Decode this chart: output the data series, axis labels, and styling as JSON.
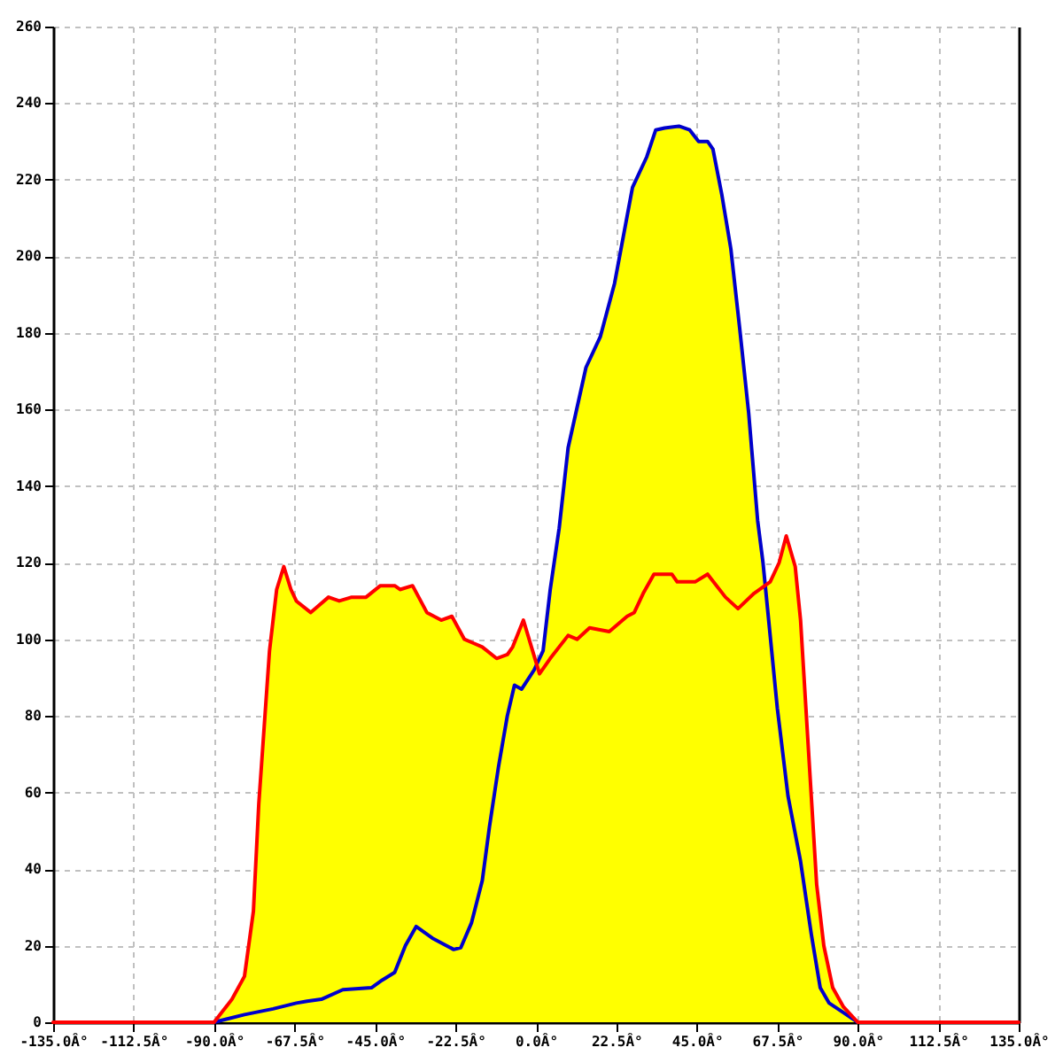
{
  "chart_data": {
    "type": "area",
    "grid": true,
    "xlim": [
      -135,
      135
    ],
    "xticks": [
      {
        "value": -135,
        "label": "-135.0Â°"
      },
      {
        "value": -112.5,
        "label": "-112.5Â°"
      },
      {
        "value": -90,
        "label": "-90.0Â°"
      },
      {
        "value": -67.5,
        "label": "-67.5Â°"
      },
      {
        "value": -45,
        "label": "-45.0Â°"
      },
      {
        "value": -22.5,
        "label": "-22.5Â°"
      },
      {
        "value": 0,
        "label": "0.0Â°"
      },
      {
        "value": 22.5,
        "label": "22.5Â°"
      },
      {
        "value": 45,
        "label": "45.0Â°"
      },
      {
        "value": 67.5,
        "label": "67.5Â°"
      },
      {
        "value": 90,
        "label": "90.0Â°"
      },
      {
        "value": 112.5,
        "label": "112.5Â°"
      },
      {
        "value": 135,
        "label": "135.0Â°"
      }
    ],
    "ylim": [
      0,
      260
    ],
    "yticks": [
      0,
      20,
      40,
      60,
      80,
      100,
      120,
      140,
      160,
      180,
      200,
      220,
      240,
      260
    ],
    "series": [
      {
        "color": "#ffff00",
        "x": [
          -135,
          -90,
          -85,
          -81.5,
          -79,
          -77.5,
          -76,
          -74.5,
          -72.5,
          -70.5,
          -68.5,
          -67,
          -63,
          -58,
          -55,
          -51.5,
          -47.5,
          -43.5,
          -39.5,
          -38,
          -34.5,
          -30.5,
          -26.5,
          -23.5,
          -20,
          -17.5,
          -15,
          -11,
          -8,
          -6.5,
          -3.5,
          0.5,
          2,
          4,
          6.5,
          9,
          14,
          18,
          22,
          27,
          31,
          33.5,
          36,
          40,
          43,
          45.5,
          48,
          49.5,
          52,
          54.5,
          57,
          59.5,
          62,
          63.5,
          64,
          65.5,
          68,
          70,
          72.5,
          74,
          75.5,
          77,
          78.5,
          80.5,
          83,
          86,
          90,
          135
        ],
        "values": [
          0,
          0,
          6,
          12,
          29,
          57,
          77,
          97,
          113,
          119,
          113,
          110,
          107,
          111,
          110,
          111,
          111,
          114,
          114,
          113,
          114,
          107,
          105,
          106,
          100,
          99,
          98,
          95,
          96,
          98,
          105,
          93,
          97,
          113,
          129,
          150,
          171,
          179,
          193,
          218,
          226,
          233,
          233.5,
          234,
          233,
          230,
          230,
          228,
          216,
          202,
          181,
          159,
          131,
          120,
          114,
          115,
          120,
          127,
          119,
          105,
          82,
          59,
          36,
          20,
          9,
          4,
          0,
          0
        ]
      },
      {
        "type": "line",
        "color": "#0000cc",
        "x": [
          -90,
          -81.5,
          -73.5,
          -67,
          -64,
          -60,
          -54,
          -46,
          -43,
          -39.5,
          -36.5,
          -33.5,
          -29,
          -23,
          -21,
          -18,
          -15,
          -13,
          -10.5,
          -8,
          -6,
          -4,
          -0.5,
          2,
          4,
          6.5,
          9,
          14,
          18,
          22,
          27,
          31,
          33.5,
          36,
          40,
          43,
          45.5,
          48,
          49.5,
          52,
          54.5,
          57,
          59.5,
          62,
          63.5,
          67.5,
          70.5,
          74,
          77,
          79.5,
          82,
          86,
          90
        ],
        "values": [
          0,
          2,
          3.5,
          5,
          5.5,
          6,
          8.5,
          9,
          11,
          13,
          20,
          25,
          22,
          19,
          19.5,
          26,
          37,
          51,
          66.5,
          80,
          88,
          87,
          92,
          97,
          113,
          129,
          150,
          171,
          179,
          193,
          218,
          226,
          233,
          233.5,
          234,
          233,
          230,
          230,
          228,
          216,
          202,
          181,
          159,
          131,
          120,
          82,
          59,
          42,
          23,
          9,
          5,
          2.5,
          0
        ]
      },
      {
        "type": "line",
        "color": "#ff0000",
        "x": [
          -135,
          -90,
          -85,
          -81.5,
          -79,
          -77.5,
          -76,
          -74.5,
          -72.5,
          -70.5,
          -68.5,
          -67,
          -63,
          -58,
          -55,
          -51.5,
          -47.5,
          -43.5,
          -39.5,
          -38,
          -34.5,
          -30.5,
          -26.5,
          -23.5,
          -20,
          -17.5,
          -15,
          -11,
          -8,
          -6.5,
          -3.5,
          1,
          4,
          9,
          11.5,
          15,
          20.5,
          25.5,
          27.5,
          30,
          33,
          38,
          39.5,
          44.5,
          48,
          53,
          56.5,
          61,
          65.5,
          68,
          70,
          72.5,
          74,
          75.5,
          77,
          78.5,
          80.5,
          83,
          86,
          90,
          135
        ],
        "values": [
          0,
          0,
          6,
          12,
          29,
          57,
          77,
          97,
          113,
          119,
          113,
          110,
          107,
          111,
          110,
          111,
          111,
          114,
          114,
          113,
          114,
          107,
          105,
          106,
          100,
          99,
          98,
          95,
          96,
          98,
          105,
          91,
          95,
          101,
          100,
          103,
          102,
          106,
          107,
          112,
          117,
          117,
          115,
          115,
          117,
          111,
          108,
          112,
          115,
          120,
          127,
          119,
          105,
          82,
          59,
          36,
          20,
          9,
          4,
          0,
          0
        ]
      }
    ]
  }
}
